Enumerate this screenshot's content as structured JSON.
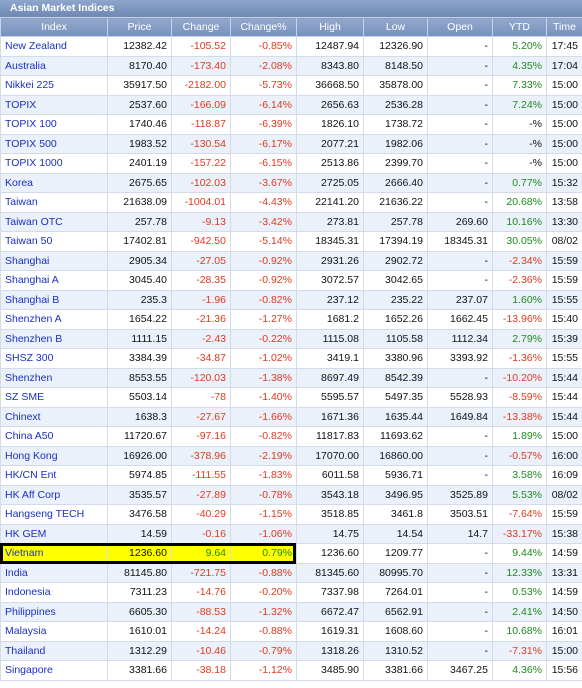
{
  "title": "Asian Market Indices",
  "columns": [
    "Index",
    "Price",
    "Change",
    "Change%",
    "High",
    "Low",
    "Open",
    "YTD",
    "Time"
  ],
  "highlighted_row": "Vietnam",
  "rows": [
    {
      "index": "New Zealand",
      "price": "12382.42",
      "change": "-105.52",
      "pct": "-0.85%",
      "high": "12487.94",
      "low": "12326.90",
      "open": "-",
      "ytd": "5.20%",
      "time": "17:45"
    },
    {
      "index": "Australia",
      "price": "8170.40",
      "change": "-173.40",
      "pct": "-2.08%",
      "high": "8343.80",
      "low": "8148.50",
      "open": "-",
      "ytd": "4.35%",
      "time": "17:04"
    },
    {
      "index": "Nikkei 225",
      "price": "35917.50",
      "change": "-2182.00",
      "pct": "-5.73%",
      "high": "36668.50",
      "low": "35878.00",
      "open": "-",
      "ytd": "7.33%",
      "time": "15:00"
    },
    {
      "index": "TOPIX",
      "price": "2537.60",
      "change": "-166.09",
      "pct": "-6.14%",
      "high": "2656.63",
      "low": "2536.28",
      "open": "-",
      "ytd": "7.24%",
      "time": "15:00"
    },
    {
      "index": "TOPIX 100",
      "price": "1740.46",
      "change": "-118.87",
      "pct": "-6.39%",
      "high": "1826.10",
      "low": "1738.72",
      "open": "-",
      "ytd": "-%",
      "time": "15:00"
    },
    {
      "index": "TOPIX 500",
      "price": "1983.52",
      "change": "-130.54",
      "pct": "-6.17%",
      "high": "2077.21",
      "low": "1982.06",
      "open": "-",
      "ytd": "-%",
      "time": "15:00"
    },
    {
      "index": "TOPIX 1000",
      "price": "2401.19",
      "change": "-157.22",
      "pct": "-6.15%",
      "high": "2513.86",
      "low": "2399.70",
      "open": "-",
      "ytd": "-%",
      "time": "15:00"
    },
    {
      "index": "Korea",
      "price": "2675.65",
      "change": "-102.03",
      "pct": "-3.67%",
      "high": "2725.05",
      "low": "2666.40",
      "open": "-",
      "ytd": "0.77%",
      "time": "15:32"
    },
    {
      "index": "Taiwan",
      "price": "21638.09",
      "change": "-1004.01",
      "pct": "-4.43%",
      "high": "22141.20",
      "low": "21636.22",
      "open": "-",
      "ytd": "20.68%",
      "time": "13:58"
    },
    {
      "index": "Taiwan OTC",
      "price": "257.78",
      "change": "-9.13",
      "pct": "-3.42%",
      "high": "273.81",
      "low": "257.78",
      "open": "269.60",
      "ytd": "10.16%",
      "time": "13:30"
    },
    {
      "index": "Taiwan 50",
      "price": "17402.81",
      "change": "-942.50",
      "pct": "-5.14%",
      "high": "18345.31",
      "low": "17394.19",
      "open": "18345.31",
      "ytd": "30.05%",
      "time": "08/02"
    },
    {
      "index": "Shanghai",
      "price": "2905.34",
      "change": "-27.05",
      "pct": "-0.92%",
      "high": "2931.26",
      "low": "2902.72",
      "open": "-",
      "ytd": "-2.34%",
      "time": "15:59"
    },
    {
      "index": "Shanghai A",
      "price": "3045.40",
      "change": "-28.35",
      "pct": "-0.92%",
      "high": "3072.57",
      "low": "3042.65",
      "open": "-",
      "ytd": "-2.36%",
      "time": "15:59"
    },
    {
      "index": "Shanghai B",
      "price": "235.3",
      "change": "-1.96",
      "pct": "-0.82%",
      "high": "237.12",
      "low": "235.22",
      "open": "237.07",
      "ytd": "1.60%",
      "time": "15:55"
    },
    {
      "index": "Shenzhen A",
      "price": "1654.22",
      "change": "-21.36",
      "pct": "-1.27%",
      "high": "1681.2",
      "low": "1652.26",
      "open": "1662.45",
      "ytd": "-13.96%",
      "time": "15:40"
    },
    {
      "index": "Shenzhen B",
      "price": "1111.15",
      "change": "-2.43",
      "pct": "-0.22%",
      "high": "1115.08",
      "low": "1105.58",
      "open": "1112.34",
      "ytd": "2.79%",
      "time": "15:39"
    },
    {
      "index": "SHSZ 300",
      "price": "3384.39",
      "change": "-34.87",
      "pct": "-1.02%",
      "high": "3419.1",
      "low": "3380.96",
      "open": "3393.92",
      "ytd": "-1.36%",
      "time": "15:55"
    },
    {
      "index": "Shenzhen",
      "price": "8553.55",
      "change": "-120.03",
      "pct": "-1.38%",
      "high": "8697.49",
      "low": "8542.39",
      "open": "-",
      "ytd": "-10.20%",
      "time": "15:44"
    },
    {
      "index": "SZ SME",
      "price": "5503.14",
      "change": "-78",
      "pct": "-1.40%",
      "high": "5595.57",
      "low": "5497.35",
      "open": "5528.93",
      "ytd": "-8.59%",
      "time": "15:44"
    },
    {
      "index": "Chinext",
      "price": "1638.3",
      "change": "-27.67",
      "pct": "-1.66%",
      "high": "1671.36",
      "low": "1635.44",
      "open": "1649.84",
      "ytd": "-13.38%",
      "time": "15:44"
    },
    {
      "index": "China A50",
      "price": "11720.67",
      "change": "-97.16",
      "pct": "-0.82%",
      "high": "11817.83",
      "low": "11693.62",
      "open": "-",
      "ytd": "1.89%",
      "time": "15:00"
    },
    {
      "index": "Hong Kong",
      "price": "16926.00",
      "change": "-378.96",
      "pct": "-2.19%",
      "high": "17070.00",
      "low": "16860.00",
      "open": "-",
      "ytd": "-0.57%",
      "time": "16:00"
    },
    {
      "index": "HK/CN Ent",
      "price": "5974.85",
      "change": "-111.55",
      "pct": "-1.83%",
      "high": "6011.58",
      "low": "5936.71",
      "open": "-",
      "ytd": "3.58%",
      "time": "16:09"
    },
    {
      "index": "HK Aff Corp",
      "price": "3535.57",
      "change": "-27.89",
      "pct": "-0.78%",
      "high": "3543.18",
      "low": "3496.95",
      "open": "3525.89",
      "ytd": "5.53%",
      "time": "08/02"
    },
    {
      "index": "Hangseng TECH",
      "price": "3476.58",
      "change": "-40.29",
      "pct": "-1.15%",
      "high": "3518.85",
      "low": "3461.8",
      "open": "3503.51",
      "ytd": "-7.64%",
      "time": "15:59"
    },
    {
      "index": "HK GEM",
      "price": "14.59",
      "change": "-0.16",
      "pct": "-1.06%",
      "high": "14.75",
      "low": "14.54",
      "open": "14.7",
      "ytd": "-33.17%",
      "time": "15:38"
    },
    {
      "index": "Vietnam",
      "price": "1236.60",
      "change": "9.64",
      "pct": "0.79%",
      "high": "1236.60",
      "low": "1209.77",
      "open": "-",
      "ytd": "9.44%",
      "time": "14:59"
    },
    {
      "index": "India",
      "price": "81145.80",
      "change": "-721.75",
      "pct": "-0.88%",
      "high": "81345.60",
      "low": "80995.70",
      "open": "-",
      "ytd": "12.33%",
      "time": "13:31"
    },
    {
      "index": "Indonesia",
      "price": "7311.23",
      "change": "-14.76",
      "pct": "-0.20%",
      "high": "7337.98",
      "low": "7264.01",
      "open": "-",
      "ytd": "0.53%",
      "time": "14:59"
    },
    {
      "index": "Philippines",
      "price": "6605.30",
      "change": "-88.53",
      "pct": "-1.32%",
      "high": "6672.47",
      "low": "6562.91",
      "open": "-",
      "ytd": "2.41%",
      "time": "14:50"
    },
    {
      "index": "Malaysia",
      "price": "1610.01",
      "change": "-14.24",
      "pct": "-0.88%",
      "high": "1619.31",
      "low": "1608.60",
      "open": "-",
      "ytd": "10.68%",
      "time": "16:01"
    },
    {
      "index": "Thailand",
      "price": "1312.29",
      "change": "-10.46",
      "pct": "-0.79%",
      "high": "1318.26",
      "low": "1310.52",
      "open": "-",
      "ytd": "-7.31%",
      "time": "15:00"
    },
    {
      "index": "Singapore",
      "price": "3381.66",
      "change": "-38.18",
      "pct": "-1.12%",
      "high": "3485.90",
      "low": "3381.66",
      "open": "3467.25",
      "ytd": "4.36%",
      "time": "15:56"
    }
  ],
  "colors": {
    "header_bg": "#7f98c3",
    "index_link": "#1a2fc4",
    "negative": "#e03a1e",
    "positive": "#1d8a1d",
    "highlight": "#ffff00",
    "row_alt": "#eaf1fb"
  }
}
